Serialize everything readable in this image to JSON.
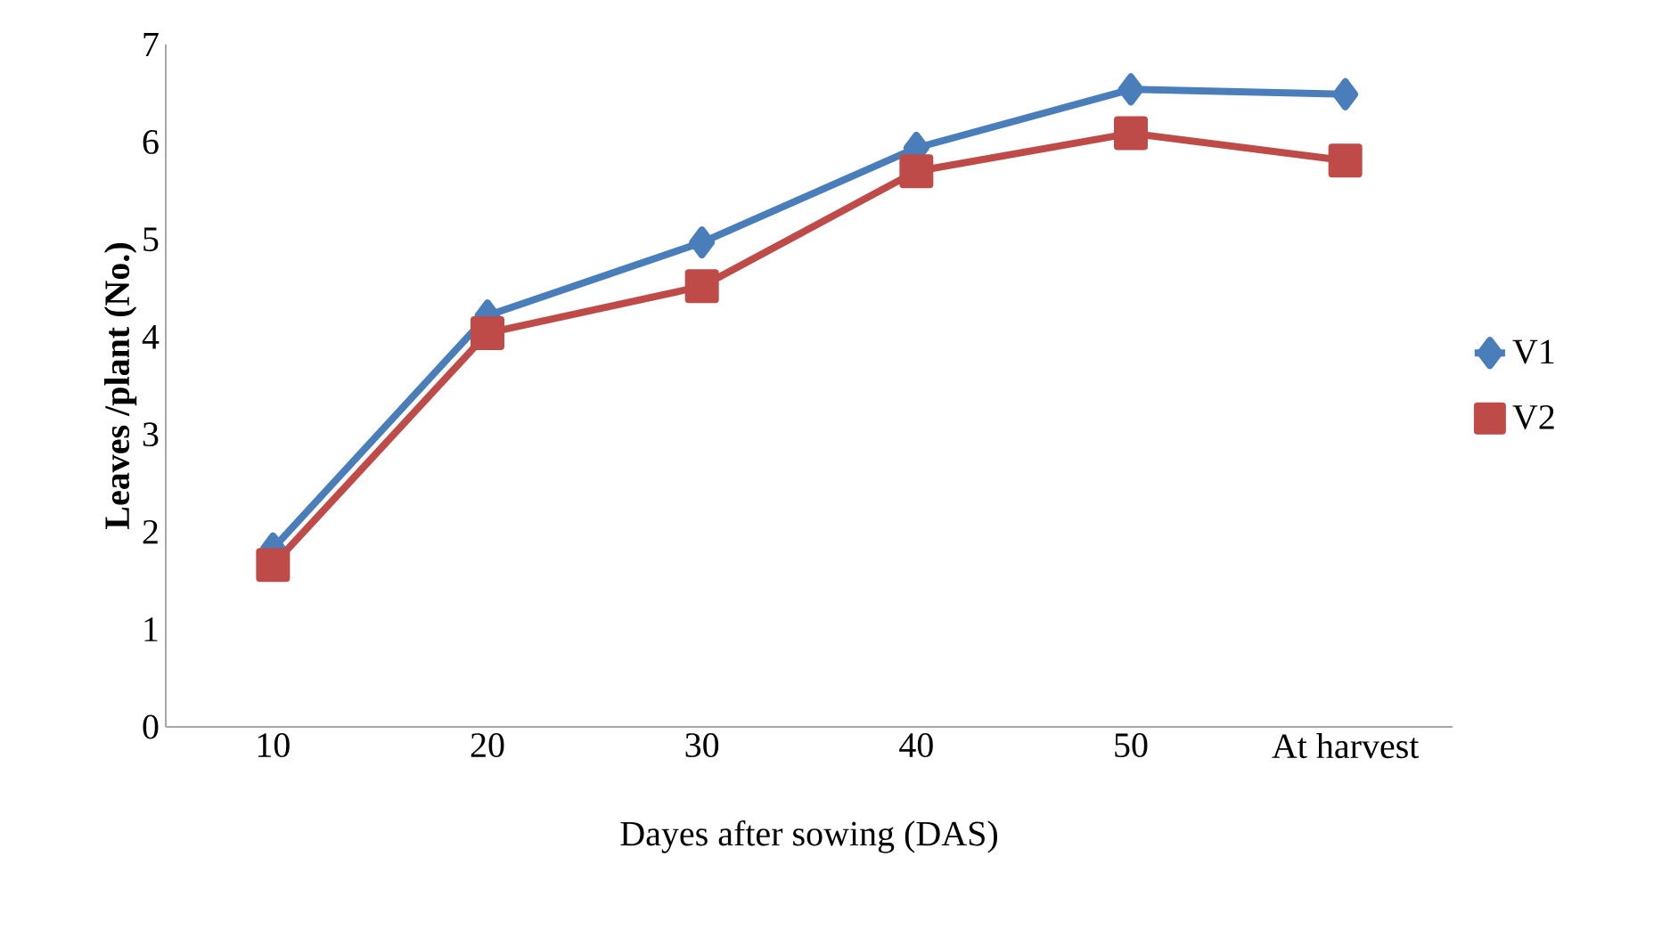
{
  "chart_data": {
    "type": "line",
    "xlabel": "Dayes after sowing (DAS)",
    "ylabel": "Leaves /plant (No.)",
    "categories": [
      "10",
      "20",
      "30",
      "40",
      "50",
      "At harvest"
    ],
    "series": [
      {
        "name": "V1",
        "color": "#4a7ebb",
        "marker": "diamond",
        "values": [
          1.83,
          4.22,
          4.97,
          5.94,
          6.54,
          6.49
        ]
      },
      {
        "name": "V2",
        "color": "#be4b48",
        "marker": "square",
        "values": [
          1.66,
          4.04,
          4.52,
          5.7,
          6.09,
          5.81
        ]
      }
    ],
    "ylim": [
      0,
      7
    ],
    "yticks": [
      0,
      1,
      2,
      3,
      4,
      5,
      6,
      7
    ],
    "grid": false,
    "legend": "right"
  }
}
